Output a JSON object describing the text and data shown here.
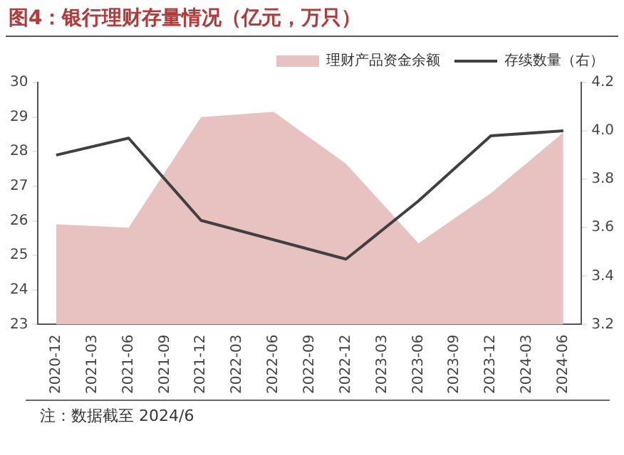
{
  "chart_data": {
    "type": "area",
    "title": "图4：银行理财存量情况（亿元，万只）",
    "categories": [
      "2020-12",
      "2021-03",
      "2021-06",
      "2021-09",
      "2021-12",
      "2022-03",
      "2022-06",
      "2022-09",
      "2022-12",
      "2023-03",
      "2023-06",
      "2023-09",
      "2023-12",
      "2024-03",
      "2024-06"
    ],
    "series": [
      {
        "name": "理财产品资金余额",
        "color": "#e8c1c1",
        "values": [
          25.9,
          null,
          25.8,
          null,
          29.0,
          null,
          29.15,
          null,
          27.65,
          null,
          25.35,
          null,
          26.8,
          null,
          28.55
        ]
      },
      {
        "name": "存续数量（右）",
        "type": "line",
        "axis": "y2",
        "color": "#404040",
        "values": [
          3.9,
          null,
          3.97,
          null,
          3.63,
          null,
          3.55,
          null,
          3.47,
          null,
          3.71,
          null,
          3.98,
          null,
          4.0
        ]
      }
    ],
    "ylim": [
      23,
      30
    ],
    "yticks": [
      23,
      24,
      25,
      26,
      27,
      28,
      29,
      30
    ],
    "y2lim": [
      3.2,
      4.2
    ],
    "y2ticks": [
      {
        "value": 3.2,
        "label": "3.2"
      },
      {
        "value": 3.4,
        "label": "3.4"
      },
      {
        "value": 3.6,
        "label": "3.6"
      },
      {
        "value": 3.8,
        "label": "3.8"
      },
      {
        "value": 4.0,
        "label": "4.0"
      },
      {
        "value": 4.2,
        "label": "4.2"
      }
    ],
    "grid": false,
    "legend": "top",
    "marker": "none",
    "line_style": "solid",
    "annotations": [
      "注：数据截至 2024/6"
    ]
  }
}
